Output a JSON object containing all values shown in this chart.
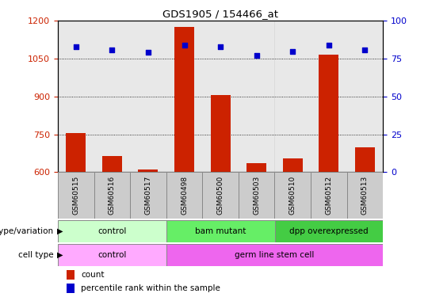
{
  "title": "GDS1905 / 154466_at",
  "samples": [
    "GSM60515",
    "GSM60516",
    "GSM60517",
    "GSM60498",
    "GSM60500",
    "GSM60503",
    "GSM60510",
    "GSM60512",
    "GSM60513"
  ],
  "counts": [
    755,
    665,
    610,
    1175,
    905,
    635,
    655,
    1065,
    700
  ],
  "percentile_ranks": [
    83,
    81,
    79,
    84,
    83,
    77,
    80,
    84,
    81
  ],
  "ylim_left": [
    600,
    1200
  ],
  "ylim_right": [
    0,
    100
  ],
  "yticks_left": [
    600,
    750,
    900,
    1050,
    1200
  ],
  "yticks_right": [
    0,
    25,
    50,
    75,
    100
  ],
  "bar_color": "#cc2200",
  "dot_color": "#0000cc",
  "genotype_groups": [
    {
      "label": "control",
      "start": 0,
      "end": 3,
      "color": "#ccffcc",
      "border": "#888888"
    },
    {
      "label": "bam mutant",
      "start": 3,
      "end": 6,
      "color": "#66ee66",
      "border": "#888888"
    },
    {
      "label": "dpp overexpressed",
      "start": 6,
      "end": 9,
      "color": "#44cc44",
      "border": "#888888"
    }
  ],
  "cell_type_groups": [
    {
      "label": "control",
      "start": 0,
      "end": 3,
      "color": "#ffaaff",
      "border": "#888888"
    },
    {
      "label": "germ line stem cell",
      "start": 3,
      "end": 9,
      "color": "#ee66ee",
      "border": "#888888"
    }
  ],
  "row_labels": [
    "genotype/variation",
    "cell type"
  ],
  "legend_items": [
    {
      "color": "#cc2200",
      "label": "count"
    },
    {
      "color": "#0000cc",
      "label": "percentile rank within the sample"
    }
  ],
  "tick_color_left": "#cc2200",
  "tick_color_right": "#0000cc",
  "col_bg_color": "#cccccc",
  "bar_width": 0.55
}
